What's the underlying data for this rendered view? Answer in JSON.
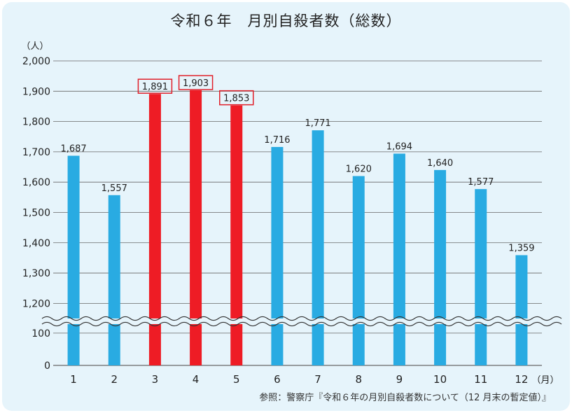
{
  "source_note": "参照：警察庁『令和６年の月別自殺者数について（12 月末の暫定値）』",
  "chart_data": {
    "type": "bar",
    "title": "令和６年　月別自殺者数（総数）",
    "ylabel": "（人）",
    "xlabel": "（月）",
    "categories": [
      "1",
      "2",
      "3",
      "4",
      "5",
      "6",
      "7",
      "8",
      "9",
      "10",
      "11",
      "12"
    ],
    "values": [
      1687,
      1557,
      1891,
      1903,
      1853,
      1716,
      1771,
      1620,
      1694,
      1640,
      1577,
      1359
    ],
    "value_labels": [
      "1,687",
      "1,557",
      "1,891",
      "1,903",
      "1,853",
      "1,716",
      "1,771",
      "1,620",
      "1,694",
      "1,640",
      "1,577",
      "1,359"
    ],
    "highlighted_categories": [
      "3",
      "4",
      "5"
    ],
    "colors": {
      "bar": "#29abe2",
      "highlight": "#ee1c25",
      "highlight_box": "#e0202a",
      "background": "#e6f4fb",
      "grid": "#666666"
    },
    "axis_break": true,
    "yticks_upper": [
      "1,200",
      "1,300",
      "1,400",
      "1,500",
      "1,600",
      "1,700",
      "1,800",
      "1,900",
      "2,000"
    ],
    "yticks_upper_values": [
      1200,
      1300,
      1400,
      1500,
      1600,
      1700,
      1800,
      1900,
      2000
    ],
    "yticks_lower": [
      "0",
      "100"
    ],
    "yticks_lower_values": [
      0,
      100
    ],
    "ylim_upper": [
      1150,
      2000
    ],
    "ylim_lower": [
      0,
      130
    ],
    "grid": true
  }
}
